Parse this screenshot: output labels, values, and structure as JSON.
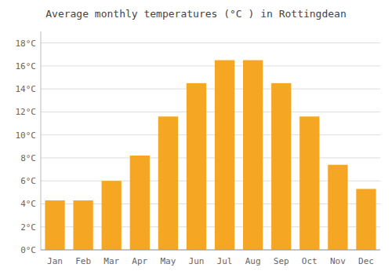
{
  "chart_data": {
    "type": "bar",
    "title": "Average monthly temperatures (°C ) in Rottingdean",
    "categories": [
      "Jan",
      "Feb",
      "Mar",
      "Apr",
      "May",
      "Jun",
      "Jul",
      "Aug",
      "Sep",
      "Oct",
      "Nov",
      "Dec"
    ],
    "values": [
      4.3,
      4.3,
      6.0,
      8.2,
      11.6,
      14.5,
      16.5,
      16.5,
      14.5,
      11.6,
      7.4,
      5.3
    ],
    "color": "#F5A623",
    "ylim": [
      0,
      19
    ],
    "yticks": [
      {
        "value": 0,
        "label": "0°C"
      },
      {
        "value": 2,
        "label": "2°C"
      },
      {
        "value": 4,
        "label": "4°C"
      },
      {
        "value": 6,
        "label": "6°C"
      },
      {
        "value": 8,
        "label": "8°C"
      },
      {
        "value": 10,
        "label": "10°C"
      },
      {
        "value": 12,
        "label": "12°C"
      },
      {
        "value": 14,
        "label": "14°C"
      },
      {
        "value": 16,
        "label": "16°C"
      },
      {
        "value": 18,
        "label": "18°C"
      }
    ],
    "grid": true
  }
}
